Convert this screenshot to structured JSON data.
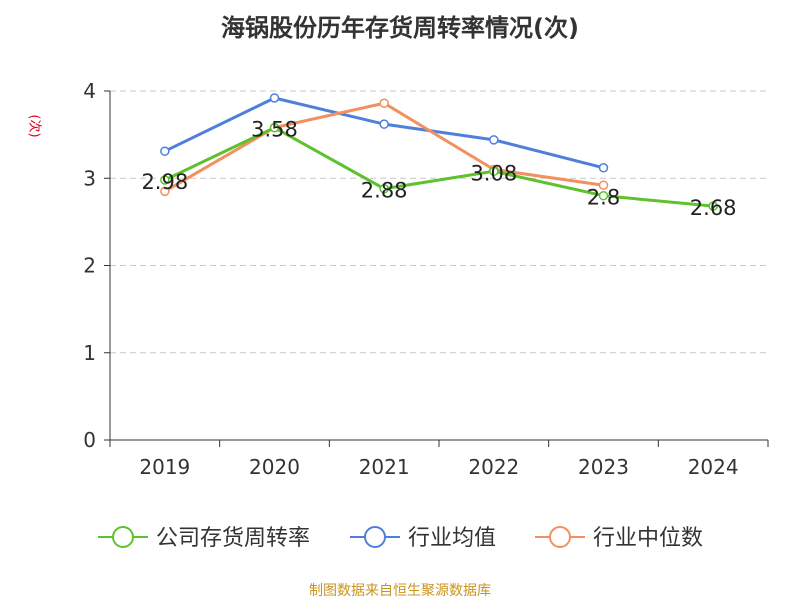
{
  "chart_data": {
    "type": "line",
    "title": "海锅股份历年存货周转率情况(次)",
    "ylabel": "(次)",
    "xlabel": "",
    "categories": [
      "2019",
      "2020",
      "2021",
      "2022",
      "2023",
      "2024"
    ],
    "ylim": [
      0,
      4
    ],
    "yticks": [
      0,
      1,
      2,
      3,
      4
    ],
    "grid": true,
    "legend_position": "bottom",
    "series": [
      {
        "name": "公司存货周转率",
        "color": "#5dc22d",
        "values": [
          2.98,
          3.58,
          2.88,
          3.08,
          2.8,
          2.68
        ],
        "labels": [
          "2.98",
          "3.58",
          "2.88",
          "3.08",
          "2.8",
          "2.68"
        ]
      },
      {
        "name": "行业均值",
        "color": "#4e80db",
        "values": [
          3.31,
          3.92,
          3.62,
          3.44,
          3.12,
          null
        ]
      },
      {
        "name": "行业中位数",
        "color": "#f39060",
        "values": [
          2.85,
          3.58,
          3.86,
          3.1,
          2.92,
          null
        ]
      }
    ]
  },
  "source": "制图数据来自恒生聚源数据库"
}
